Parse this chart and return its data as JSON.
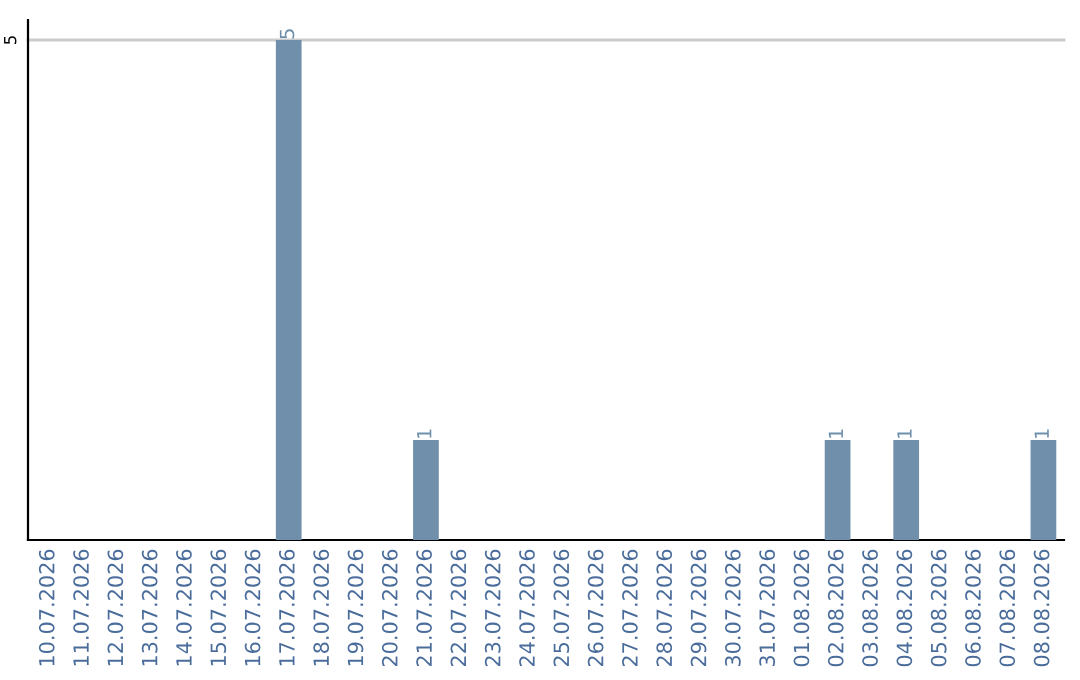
{
  "chart_data": {
    "type": "bar",
    "categories": [
      "10.07.2026",
      "11.07.2026",
      "12.07.2026",
      "13.07.2026",
      "14.07.2026",
      "15.07.2026",
      "16.07.2026",
      "17.07.2026",
      "18.07.2026",
      "19.07.2026",
      "20.07.2026",
      "21.07.2026",
      "22.07.2026",
      "23.07.2026",
      "24.07.2026",
      "25.07.2026",
      "26.07.2026",
      "27.07.2026",
      "28.07.2026",
      "29.07.2026",
      "30.07.2026",
      "31.07.2026",
      "01.08.2026",
      "02.08.2026",
      "03.08.2026",
      "04.08.2026",
      "05.08.2026",
      "06.08.2026",
      "07.08.2026",
      "08.08.2026"
    ],
    "values": [
      0,
      0,
      0,
      0,
      0,
      0,
      0,
      5,
      0,
      0,
      0,
      1,
      0,
      0,
      0,
      0,
      0,
      0,
      0,
      0,
      0,
      0,
      0,
      1,
      0,
      1,
      0,
      0,
      0,
      1
    ],
    "value_labels": [
      null,
      null,
      null,
      null,
      null,
      null,
      null,
      "5",
      null,
      null,
      null,
      "1",
      null,
      null,
      null,
      null,
      null,
      null,
      null,
      null,
      null,
      null,
      null,
      "1",
      null,
      "1",
      null,
      null,
      null,
      "1"
    ],
    "color": "#6f8fab",
    "ylim": [
      0,
      5.2
    ],
    "yticks": [
      5
    ],
    "grid": "y"
  }
}
